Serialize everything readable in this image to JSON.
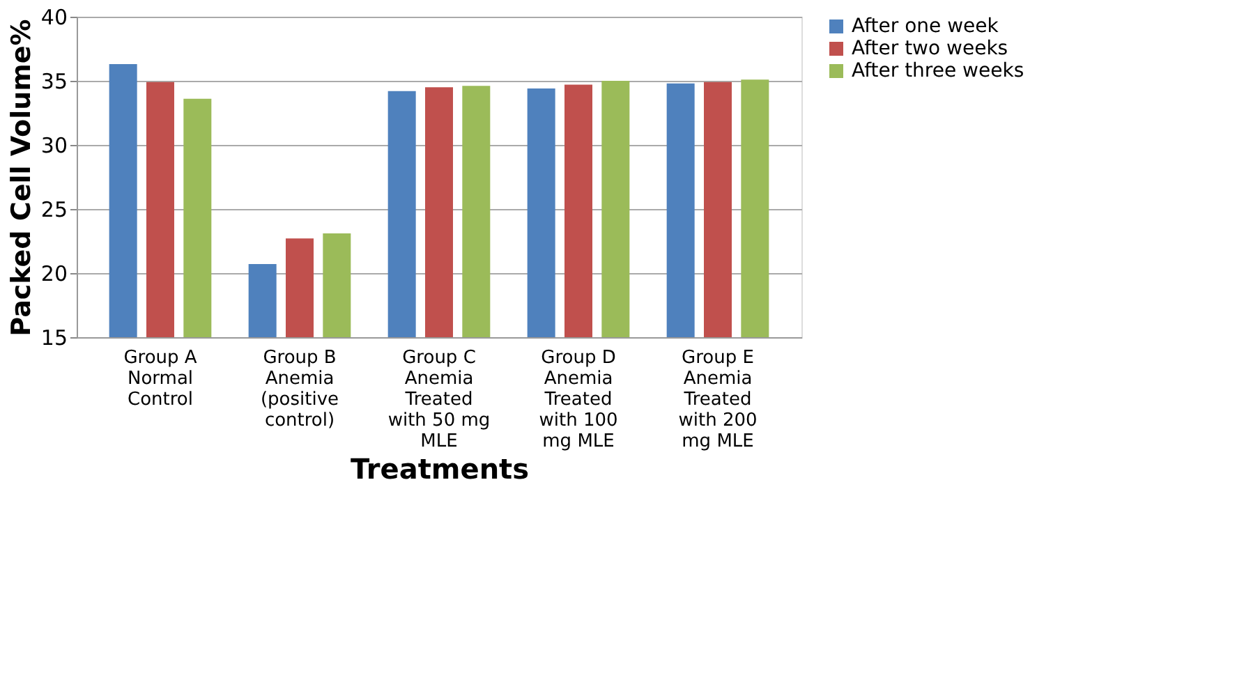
{
  "chart_data": {
    "type": "bar",
    "xlabel": "Treatments",
    "ylabel": "Packed Cell Volume%",
    "categories": [
      "Group A Normal Control",
      "Group B Anemia (positive control)",
      "Group C Anemia Treated with 50 mg MLE",
      "Group D Anemia Treated with 100 mg MLE",
      "Group E Anemia Treated with 200 mg MLE"
    ],
    "series": [
      {
        "name": "After one week",
        "color": "#4f81bd",
        "values": [
          36.3,
          20.7,
          34.2,
          34.4,
          34.8
        ]
      },
      {
        "name": "After two weeks",
        "color": "#c0504d",
        "values": [
          34.9,
          22.7,
          34.5,
          34.7,
          34.9
        ]
      },
      {
        "name": "After three weeks",
        "color": "#9bbb59",
        "values": [
          33.6,
          23.1,
          34.6,
          35.0,
          35.1
        ]
      }
    ],
    "ylim": [
      15,
      40
    ],
    "yticks": [
      15,
      20,
      25,
      30,
      35,
      40
    ],
    "grid": "y",
    "legend": "right"
  }
}
